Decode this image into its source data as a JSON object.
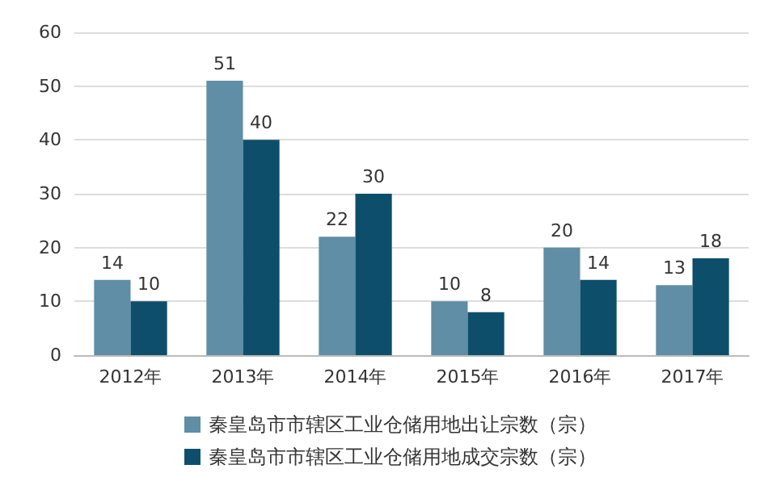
{
  "chart_data": {
    "type": "bar",
    "categories": [
      "2012年",
      "2013年",
      "2014年",
      "2015年",
      "2016年",
      "2017年"
    ],
    "series": [
      {
        "name": "秦皇岛市市辖区工业仓储用地出让宗数（宗）",
        "color": "#5f8ea6",
        "values": [
          14,
          51,
          22,
          10,
          20,
          13
        ]
      },
      {
        "name": "秦皇岛市市辖区工业仓储用地成交宗数（宗）",
        "color": "#0d4f6a",
        "values": [
          10,
          40,
          30,
          8,
          14,
          18
        ]
      }
    ],
    "ylim": [
      0,
      60
    ],
    "yticks": [
      0,
      10,
      20,
      30,
      40,
      50,
      60
    ],
    "grid": "y",
    "legend": "bottom",
    "data_labels": true
  }
}
